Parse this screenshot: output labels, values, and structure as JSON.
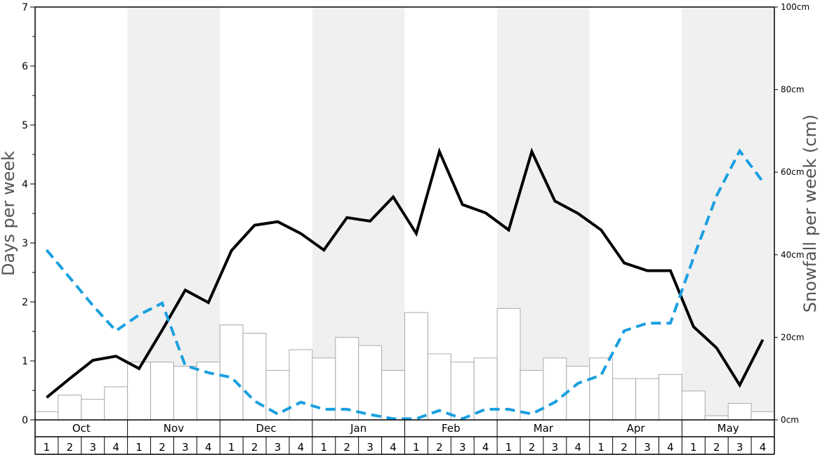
{
  "chart_data": {
    "type": "bar",
    "ylabel_left": "Days per week",
    "ylabel_right": "Snowfall per week (cm)",
    "ylim_left": [
      0,
      7
    ],
    "ylim_right": [
      0,
      100
    ],
    "yticks_left": [
      "0",
      "1",
      "2",
      "3",
      "4",
      "5",
      "6",
      "7"
    ],
    "yticks_right": [
      "0cm",
      "20cm",
      "40cm",
      "60cm",
      "80cm",
      "100cm"
    ],
    "months": [
      "Oct",
      "Nov",
      "Dec",
      "Jan",
      "Feb",
      "Mar",
      "Apr",
      "May"
    ],
    "week_labels": [
      "1",
      "2",
      "3",
      "4"
    ],
    "grid": false,
    "alternating_month_shading": true,
    "series": [
      {
        "kind": "bar",
        "axis": "right",
        "color": "#ffffff",
        "values": [
          2,
          6,
          5,
          8,
          14,
          14,
          13,
          14,
          23,
          21,
          12,
          17,
          15,
          20,
          18,
          12,
          26,
          16,
          14,
          15,
          27,
          12,
          15,
          13,
          15,
          10,
          10,
          11,
          7,
          1,
          4,
          2
        ]
      },
      {
        "kind": "line",
        "axis": "left",
        "style": "solid",
        "color": "#000000",
        "values": [
          0.38,
          0.7,
          1.01,
          1.08,
          0.87,
          1.52,
          2.2,
          1.99,
          2.87,
          3.3,
          3.36,
          3.16,
          2.88,
          3.43,
          3.37,
          3.78,
          3.16,
          4.55,
          3.65,
          3.51,
          3.22,
          4.55,
          3.71,
          3.5,
          3.22,
          2.66,
          2.53,
          2.53,
          1.58,
          1.22,
          0.59,
          1.36
        ]
      },
      {
        "kind": "line",
        "axis": "left",
        "style": "dashed",
        "color": "#1a9fe0",
        "values": [
          2.88,
          2.41,
          1.94,
          1.51,
          1.78,
          1.98,
          0.92,
          0.8,
          0.72,
          0.32,
          0.1,
          0.3,
          0.18,
          0.18,
          0.09,
          0.02,
          0.02,
          0.16,
          0.02,
          0.18,
          0.18,
          0.1,
          0.3,
          0.62,
          0.76,
          1.51,
          1.64,
          1.64,
          2.75,
          3.8,
          4.56,
          4.04
        ]
      }
    ]
  },
  "colors": {
    "shade": "#f0f0f0",
    "axis": "#000000",
    "bar_stroke": "#aaaaaa",
    "label_gray": "#555555"
  }
}
